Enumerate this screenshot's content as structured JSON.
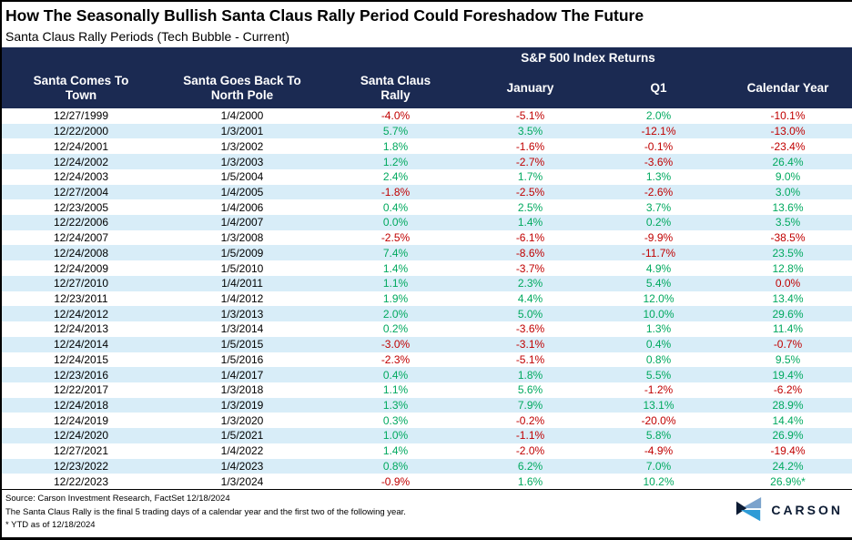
{
  "title": "How The Seasonally Bullish Santa Claus Rally Period Could Foreshadow The Future",
  "subtitle": "Santa Claus Rally Periods (Tech Bubble - Current)",
  "chart_data": {
    "type": "table",
    "title": "How The Seasonally Bullish Santa Claus Rally Period Could Foreshadow The Future",
    "subtitle": "Santa Claus Rally Periods (Tech Bubble - Current)",
    "group_header": "S&P 500 Index Returns",
    "group_header_spans_columns": [
      "Santa Claus Rally",
      "January",
      "Q1",
      "Calendar Year"
    ],
    "columns": [
      [
        "Santa Comes To",
        "Town"
      ],
      [
        "Santa Goes Back To",
        "North Pole"
      ],
      [
        "Santa Claus",
        "Rally"
      ],
      [
        "January"
      ],
      [
        "Q1"
      ],
      [
        "Calendar Year"
      ]
    ],
    "rows": [
      {
        "start": "12/27/1999",
        "end": "1/4/2000",
        "vals": [
          "-4.0%",
          "-5.1%",
          "2.0%",
          "-10.1%"
        ],
        "colors": [
          "neg",
          "neg",
          "pos",
          "neg"
        ]
      },
      {
        "start": "12/22/2000",
        "end": "1/3/2001",
        "vals": [
          "5.7%",
          "3.5%",
          "-12.1%",
          "-13.0%"
        ],
        "colors": [
          "pos",
          "pos",
          "neg",
          "neg"
        ]
      },
      {
        "start": "12/24/2001",
        "end": "1/3/2002",
        "vals": [
          "1.8%",
          "-1.6%",
          "-0.1%",
          "-23.4%"
        ],
        "colors": [
          "pos",
          "neg",
          "neg",
          "neg"
        ]
      },
      {
        "start": "12/24/2002",
        "end": "1/3/2003",
        "vals": [
          "1.2%",
          "-2.7%",
          "-3.6%",
          "26.4%"
        ],
        "colors": [
          "pos",
          "neg",
          "neg",
          "pos"
        ]
      },
      {
        "start": "12/24/2003",
        "end": "1/5/2004",
        "vals": [
          "2.4%",
          "1.7%",
          "1.3%",
          "9.0%"
        ],
        "colors": [
          "pos",
          "pos",
          "pos",
          "pos"
        ]
      },
      {
        "start": "12/27/2004",
        "end": "1/4/2005",
        "vals": [
          "-1.8%",
          "-2.5%",
          "-2.6%",
          "3.0%"
        ],
        "colors": [
          "neg",
          "neg",
          "neg",
          "pos"
        ]
      },
      {
        "start": "12/23/2005",
        "end": "1/4/2006",
        "vals": [
          "0.4%",
          "2.5%",
          "3.7%",
          "13.6%"
        ],
        "colors": [
          "pos",
          "pos",
          "pos",
          "pos"
        ]
      },
      {
        "start": "12/22/2006",
        "end": "1/4/2007",
        "vals": [
          "0.0%",
          "1.4%",
          "0.2%",
          "3.5%"
        ],
        "colors": [
          "pos",
          "pos",
          "pos",
          "pos"
        ]
      },
      {
        "start": "12/24/2007",
        "end": "1/3/2008",
        "vals": [
          "-2.5%",
          "-6.1%",
          "-9.9%",
          "-38.5%"
        ],
        "colors": [
          "neg",
          "neg",
          "neg",
          "neg"
        ]
      },
      {
        "start": "12/24/2008",
        "end": "1/5/2009",
        "vals": [
          "7.4%",
          "-8.6%",
          "-11.7%",
          "23.5%"
        ],
        "colors": [
          "pos",
          "neg",
          "neg",
          "pos"
        ]
      },
      {
        "start": "12/24/2009",
        "end": "1/5/2010",
        "vals": [
          "1.4%",
          "-3.7%",
          "4.9%",
          "12.8%"
        ],
        "colors": [
          "pos",
          "neg",
          "pos",
          "pos"
        ]
      },
      {
        "start": "12/27/2010",
        "end": "1/4/2011",
        "vals": [
          "1.1%",
          "2.3%",
          "5.4%",
          "0.0%"
        ],
        "colors": [
          "pos",
          "pos",
          "pos",
          "neg"
        ]
      },
      {
        "start": "12/23/2011",
        "end": "1/4/2012",
        "vals": [
          "1.9%",
          "4.4%",
          "12.0%",
          "13.4%"
        ],
        "colors": [
          "pos",
          "pos",
          "pos",
          "pos"
        ]
      },
      {
        "start": "12/24/2012",
        "end": "1/3/2013",
        "vals": [
          "2.0%",
          "5.0%",
          "10.0%",
          "29.6%"
        ],
        "colors": [
          "pos",
          "pos",
          "pos",
          "pos"
        ]
      },
      {
        "start": "12/24/2013",
        "end": "1/3/2014",
        "vals": [
          "0.2%",
          "-3.6%",
          "1.3%",
          "11.4%"
        ],
        "colors": [
          "pos",
          "neg",
          "pos",
          "pos"
        ]
      },
      {
        "start": "12/24/2014",
        "end": "1/5/2015",
        "vals": [
          "-3.0%",
          "-3.1%",
          "0.4%",
          "-0.7%"
        ],
        "colors": [
          "neg",
          "neg",
          "pos",
          "neg"
        ]
      },
      {
        "start": "12/24/2015",
        "end": "1/5/2016",
        "vals": [
          "-2.3%",
          "-5.1%",
          "0.8%",
          "9.5%"
        ],
        "colors": [
          "neg",
          "neg",
          "pos",
          "pos"
        ]
      },
      {
        "start": "12/23/2016",
        "end": "1/4/2017",
        "vals": [
          "0.4%",
          "1.8%",
          "5.5%",
          "19.4%"
        ],
        "colors": [
          "pos",
          "pos",
          "pos",
          "pos"
        ]
      },
      {
        "start": "12/22/2017",
        "end": "1/3/2018",
        "vals": [
          "1.1%",
          "5.6%",
          "-1.2%",
          "-6.2%"
        ],
        "colors": [
          "pos",
          "pos",
          "neg",
          "neg"
        ]
      },
      {
        "start": "12/24/2018",
        "end": "1/3/2019",
        "vals": [
          "1.3%",
          "7.9%",
          "13.1%",
          "28.9%"
        ],
        "colors": [
          "pos",
          "pos",
          "pos",
          "pos"
        ]
      },
      {
        "start": "12/24/2019",
        "end": "1/3/2020",
        "vals": [
          "0.3%",
          "-0.2%",
          "-20.0%",
          "14.4%"
        ],
        "colors": [
          "pos",
          "neg",
          "neg",
          "pos"
        ]
      },
      {
        "start": "12/24/2020",
        "end": "1/5/2021",
        "vals": [
          "1.0%",
          "-1.1%",
          "5.8%",
          "26.9%"
        ],
        "colors": [
          "pos",
          "neg",
          "pos",
          "pos"
        ]
      },
      {
        "start": "12/27/2021",
        "end": "1/4/2022",
        "vals": [
          "1.4%",
          "-2.0%",
          "-4.9%",
          "-19.4%"
        ],
        "colors": [
          "pos",
          "neg",
          "neg",
          "neg"
        ]
      },
      {
        "start": "12/23/2022",
        "end": "1/4/2023",
        "vals": [
          "0.8%",
          "6.2%",
          "7.0%",
          "24.2%"
        ],
        "colors": [
          "pos",
          "pos",
          "pos",
          "pos"
        ]
      },
      {
        "start": "12/22/2023",
        "end": "1/3/2024",
        "vals": [
          "-0.9%",
          "1.6%",
          "10.2%",
          "26.9%*"
        ],
        "colors": [
          "neg",
          "pos",
          "pos",
          "pos"
        ]
      }
    ]
  },
  "footer": {
    "source": "Source: Carson Investment Research, FactSet 12/18/2024",
    "note": "The Santa Claus Rally is the final 5 trading days of a calendar year and the first two of the following year.",
    "ytd_note": "* YTD as of 12/18/2024",
    "logo_text": "CARSON"
  },
  "colors": {
    "navy": "#1B2A52",
    "stripe": "#D8EDF8",
    "positive": "#00A95F",
    "negative": "#C00000",
    "logo_navy": "#0C1B33",
    "logo_light_blue": "#7BA3CC",
    "logo_bright_blue": "#2E9BD6"
  }
}
